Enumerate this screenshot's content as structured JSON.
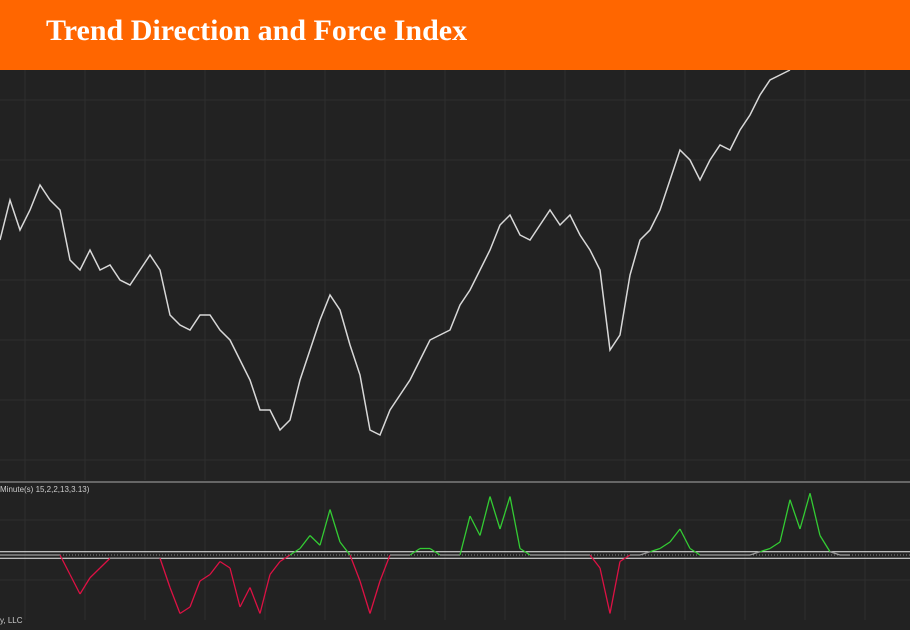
{
  "header": {
    "title": "Trend Direction and Force Index"
  },
  "chart_data": [
    {
      "type": "line",
      "color": "#d8d8d8",
      "ylim": [
        0,
        410
      ],
      "grid": true,
      "values": [
        240,
        280,
        250,
        270,
        295,
        280,
        270,
        220,
        210,
        230,
        210,
        215,
        200,
        195,
        210,
        225,
        210,
        165,
        155,
        150,
        165,
        165,
        150,
        140,
        120,
        100,
        70,
        70,
        50,
        60,
        100,
        130,
        160,
        185,
        170,
        135,
        105,
        50,
        45,
        70,
        85,
        100,
        120,
        140,
        145,
        150,
        175,
        190,
        210,
        230,
        255,
        265,
        245,
        240,
        255,
        270,
        255,
        265,
        245,
        230,
        210,
        130,
        145,
        205,
        240,
        250,
        270,
        300,
        330,
        320,
        300,
        320,
        335,
        330,
        350,
        365,
        385,
        400,
        405,
        410
      ]
    },
    {
      "type": "indicator",
      "label": "Minute(s) 15,2,2,13,3.13)",
      "ylim": [
        -1,
        1
      ],
      "grid": true,
      "up_color": "#33cc33",
      "down_color": "#dd1144",
      "flat_color": "#999999",
      "levels": [
        0.05,
        -0.05
      ],
      "values": [
        0,
        0,
        0,
        0,
        0,
        0,
        0,
        -0.3,
        -0.6,
        -0.35,
        -0.2,
        -0.05,
        -0.05,
        -0.05,
        -0.05,
        -0.05,
        -0.05,
        -0.5,
        -0.9,
        -0.8,
        -0.4,
        -0.3,
        -0.1,
        -0.2,
        -0.8,
        -0.5,
        -0.9,
        -0.3,
        -0.1,
        0,
        0.1,
        0.3,
        0.15,
        0.7,
        0.2,
        0,
        -0.4,
        -0.9,
        -0.4,
        0,
        0,
        0,
        0.1,
        0.1,
        0,
        0,
        0,
        0.6,
        0.3,
        0.9,
        0.4,
        0.9,
        0.1,
        0,
        0,
        0,
        0,
        0,
        0,
        0,
        -0.2,
        -0.9,
        -0.1,
        0,
        0,
        0.05,
        0.1,
        0.2,
        0.4,
        0.1,
        0,
        0,
        0,
        0,
        0,
        0,
        0.05,
        0.1,
        0.2,
        0.85,
        0.4,
        0.95,
        0.3,
        0.05,
        0,
        0
      ]
    }
  ],
  "footer": {
    "text": "y, LLC"
  }
}
